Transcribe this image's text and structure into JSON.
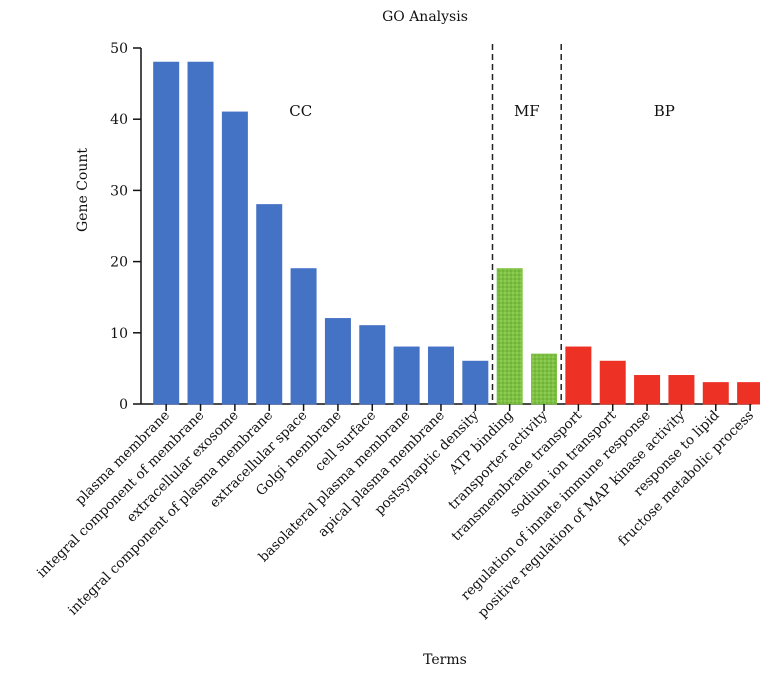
{
  "chart_data": {
    "type": "bar",
    "title": "GO Analysis",
    "xlabel": "Terms",
    "ylabel": "Gene Count",
    "ylim": [
      0,
      50
    ],
    "yticks": [
      0,
      10,
      20,
      30,
      40,
      50
    ],
    "grid": false,
    "categories": [
      "plasma membrane",
      "integral component of membrane",
      "extracellular exosome",
      "integral component of plasma membrane",
      "extracellular space",
      "Golgi membrane",
      "cell surface",
      "basolateral plasma membrane",
      "apical plasma membrane",
      "postsynaptic density",
      "ATP binding",
      "transporter activity",
      "transmembrane transport",
      "sodium ion transport",
      "regulation of innate immune response",
      "positive regulation of MAP kinase activity",
      "response to lipid",
      "fructose metabolic process"
    ],
    "values": [
      48,
      48,
      41,
      28,
      19,
      12,
      11,
      8,
      8,
      6,
      19,
      7,
      8,
      6,
      4,
      4,
      3,
      3
    ],
    "groups": [
      {
        "label": "CC",
        "start": 0,
        "end": 9,
        "color": "#4472C4"
      },
      {
        "label": "MF",
        "start": 10,
        "end": 11,
        "color": "#7DC142"
      },
      {
        "label": "BP",
        "start": 12,
        "end": 17,
        "color": "#EE3125"
      }
    ]
  }
}
